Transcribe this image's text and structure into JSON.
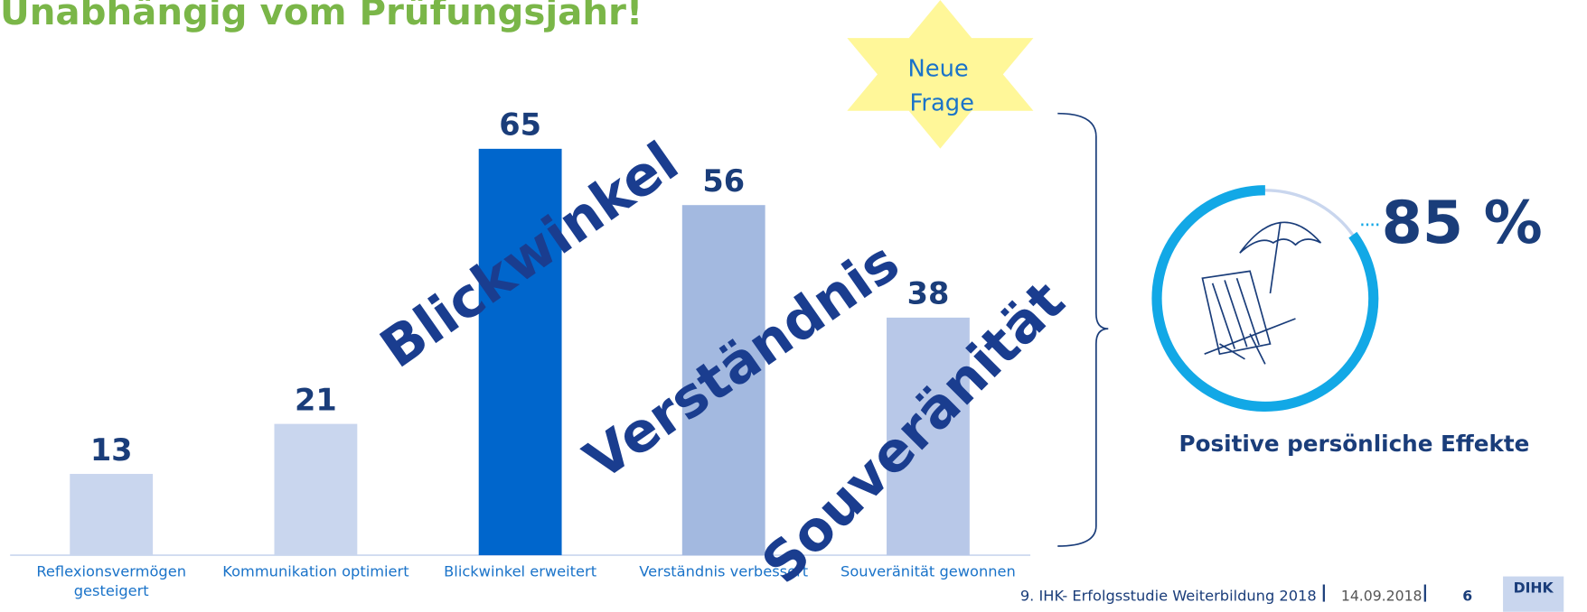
{
  "chart_data": {
    "type": "bar",
    "title": "Unabhängig vom Prüfungsjahr!",
    "categories": [
      "Reflexionsvermögen gesteigert",
      "Kommunikation optimiert",
      "Blickwinkel erweitert",
      "Verständnis verbessert",
      "Souveränität gewonnen"
    ],
    "values": [
      13,
      21,
      65,
      56,
      38
    ],
    "colors": [
      "#c9d6ee",
      "#c9d6ee",
      "#0066cc",
      "#a3b9e0",
      "#b8c8e8"
    ],
    "annotations": [
      "Neue Frage",
      "Blickwinkel",
      "Verständnis",
      "Souveränität"
    ],
    "gauge": {
      "value": 85,
      "value_label": "85 %",
      "label": "Positive persönliche Effekte",
      "color": "#12a8e6"
    },
    "footer": {
      "text": "9. IHK- Erfolgsstudie Weiterbildung 2018",
      "date": "14.09.2018",
      "page": "6",
      "logo": "DIHK"
    }
  }
}
